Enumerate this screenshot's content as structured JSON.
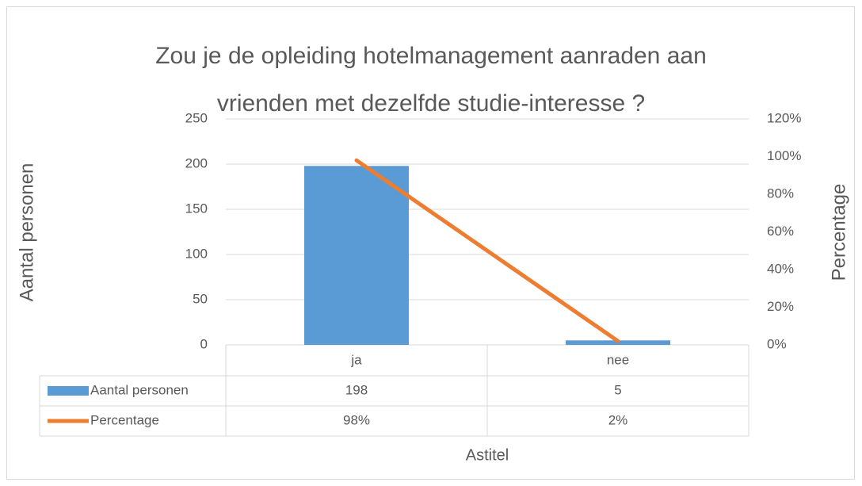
{
  "chart_data": {
    "type": "bar",
    "title": [
      "Zou je de opleiding hotelmanagement aanraden aan",
      "vrienden met dezelfde studie-interesse ?"
    ],
    "y_label": "Aantal personen",
    "y2_label": "Percentage",
    "x_label": "Astitel",
    "categories": [
      "ja",
      "nee"
    ],
    "series": [
      {
        "name": "Aantal personen",
        "type": "bar",
        "color": "#5b9bd5",
        "values": [
          198,
          5
        ]
      },
      {
        "name": "Percentage",
        "type": "line",
        "axis": "y2",
        "color": "#ed7d31",
        "values": [
          98,
          2
        ],
        "value_labels": [
          "98%",
          "2%"
        ]
      }
    ],
    "ylim": [
      0,
      250
    ],
    "yticks": [
      0,
      50,
      100,
      150,
      200,
      250
    ],
    "y2lim": [
      0,
      120
    ],
    "y2ticks": [
      {
        "value": 0,
        "label": "0%"
      },
      {
        "value": 20,
        "label": "20%"
      },
      {
        "value": 40,
        "label": "40%"
      },
      {
        "value": 60,
        "label": "60%"
      },
      {
        "value": 80,
        "label": "80%"
      },
      {
        "value": 100,
        "label": "100%"
      },
      {
        "value": 120,
        "label": "120%"
      }
    ],
    "grid": true,
    "data_table": true
  }
}
